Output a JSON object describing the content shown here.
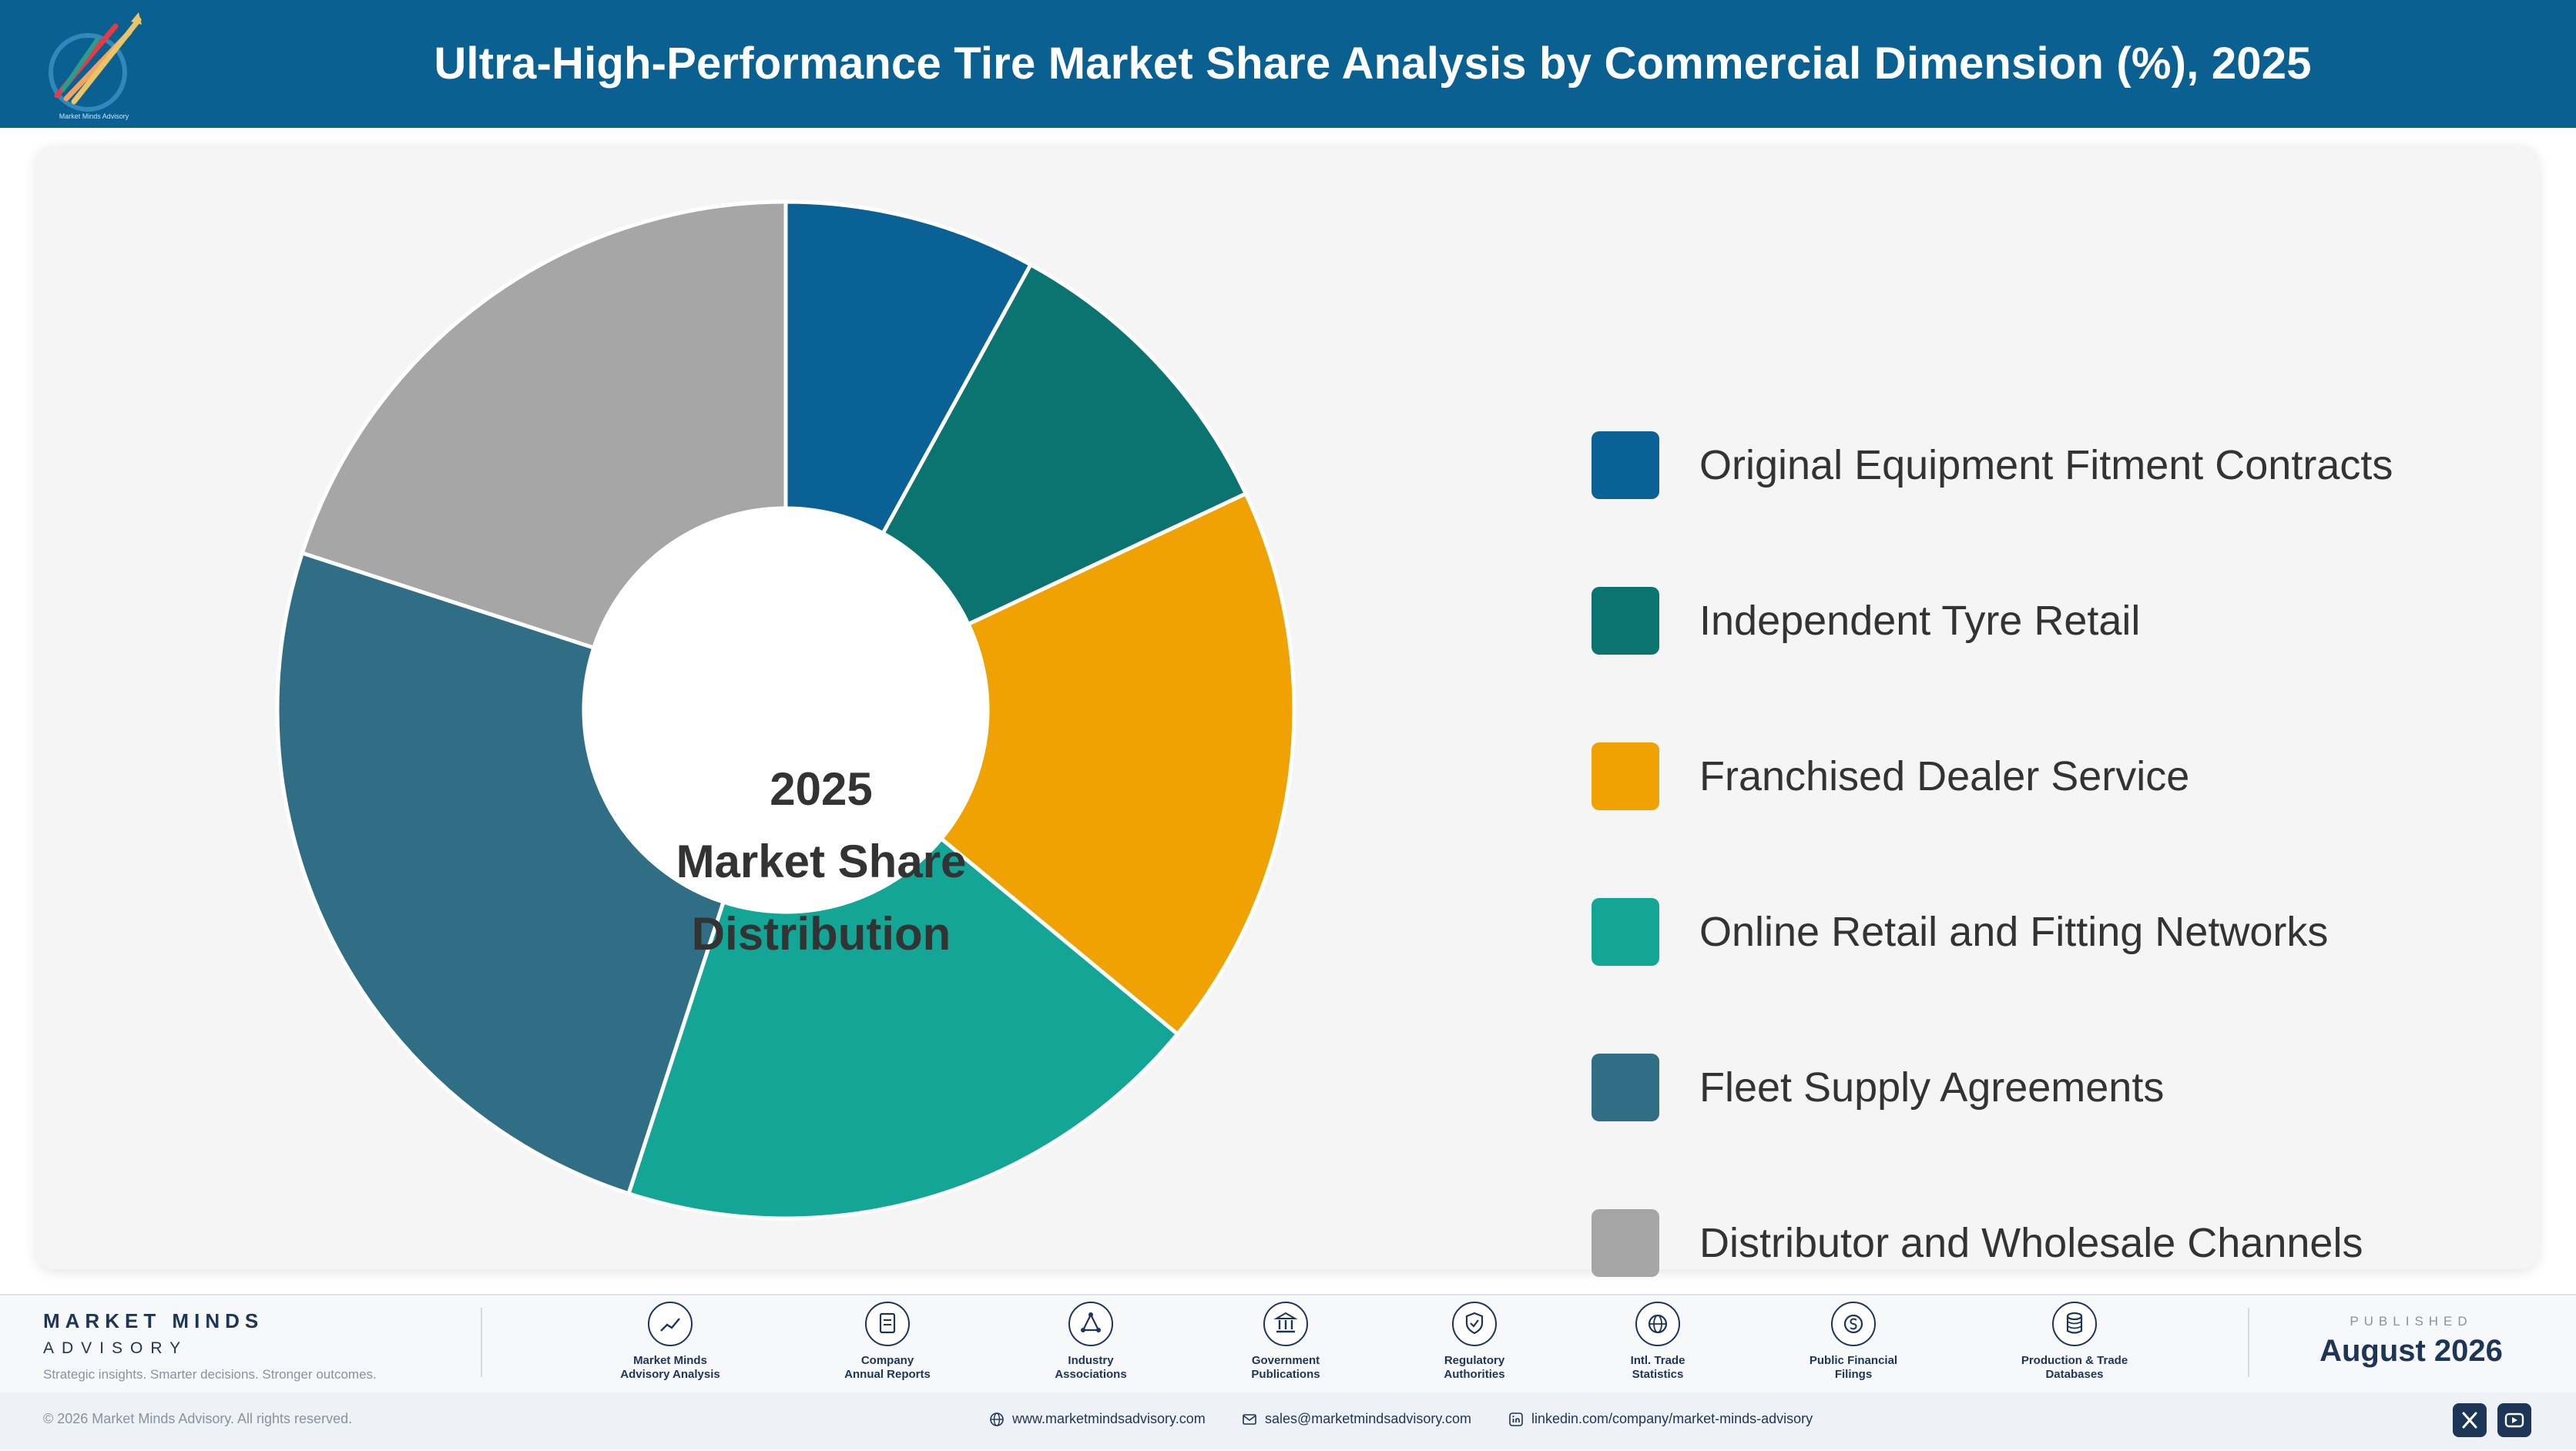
{
  "header": {
    "title": "Ultra-High-Performance Tire Market Share Analysis by Commercial Dimension (%), 2025",
    "logo_text": "Market Minds Advisory"
  },
  "colors": {
    "header_bg": "#0a6191",
    "card_bg": "#f5f5f5",
    "navy": "#1d3557"
  },
  "chart_data": {
    "type": "pie",
    "subtype": "donut",
    "title": "",
    "center_label": [
      "2025",
      "Market Share",
      "Distribution"
    ],
    "legend_position": "right",
    "categories": [
      "Original Equipment Fitment Contracts",
      "Independent Tyre Retail",
      "Franchised Dealer Service",
      "Online Retail and Fitting Networks",
      "Fleet Supply Agreements",
      "Distributor and Wholesale Channels"
    ],
    "values": [
      8,
      10,
      18,
      19,
      25,
      20
    ],
    "colors": [
      "#0a6196",
      "#0c7470",
      "#f0a202",
      "#13a596",
      "#2f6e84",
      "#a6a6a6"
    ]
  },
  "footer": {
    "brand_name": "MARKET MINDS",
    "brand_sub": "ADVISORY",
    "brand_tag": "Strategic insights. Smarter decisions. Stronger outcomes.",
    "sources": [
      {
        "icon": "trend-chart-icon",
        "label": "Market Minds\nAdvisory Analysis"
      },
      {
        "icon": "document-icon",
        "label": "Company\nAnnual Reports"
      },
      {
        "icon": "network-icon",
        "label": "Industry\nAssociations"
      },
      {
        "icon": "government-building-icon",
        "label": "Government\nPublications"
      },
      {
        "icon": "shield-check-icon",
        "label": "Regulatory\nAuthorities"
      },
      {
        "icon": "globe-icon",
        "label": "Intl. Trade\nStatistics"
      },
      {
        "icon": "dollar-coin-icon",
        "label": "Public Financial\nFilings"
      },
      {
        "icon": "database-icon",
        "label": "Production & Trade\nDatabases"
      }
    ],
    "published_label": "PUBLISHED",
    "published_date": "August 2026",
    "copyright": "© 2026 Market Minds Advisory. All rights reserved.",
    "website": "www.marketmindsadvisory.com",
    "email": "sales@marketmindsadvisory.com",
    "linkedin": "linkedin.com/company/market-minds-advisory"
  }
}
